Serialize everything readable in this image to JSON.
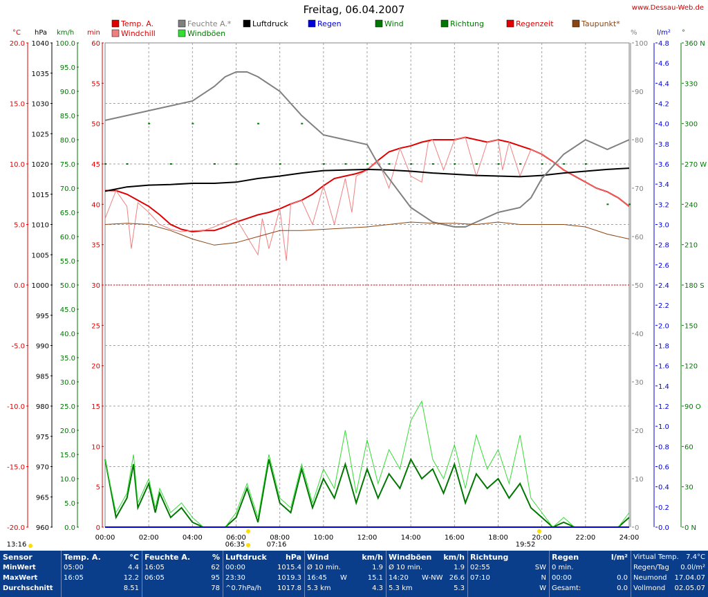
{
  "title": "Freitag, 06.04.2007",
  "site": "www.Dessau-Web.de",
  "axes": {
    "temp_unit": "°C",
    "hpa_unit": "hPa",
    "kmh_unit": "km/h",
    "min_unit": "min",
    "pct_unit": "%",
    "rain_unit": "l/m²",
    "dir_unit": "°",
    "temp_ticks": [
      "20.0",
      "15.0",
      "10.0",
      "5.0",
      "0.0",
      "-5.0",
      "-10.0",
      "-15.0",
      "-20.0"
    ],
    "hpa_ticks": [
      "1040",
      "1035",
      "1030",
      "1025",
      "1020",
      "1015",
      "1010",
      "1005",
      "1000",
      "995",
      "990",
      "985",
      "980",
      "975",
      "970",
      "965",
      "960"
    ],
    "kmh_ticks": [
      "100.0",
      "95.0",
      "90.0",
      "85.0",
      "80.0",
      "75.0",
      "70.0",
      "65.0",
      "60.0",
      "55.0",
      "50.0",
      "45.0",
      "40.0",
      "35.0",
      "30.0",
      "25.0",
      "20.0",
      "15.0",
      "10.0",
      "5.0",
      "0.0"
    ],
    "min_ticks": [
      "60",
      "55",
      "50",
      "45",
      "40",
      "35",
      "30",
      "25",
      "20",
      "15",
      "10",
      "5",
      "0"
    ],
    "pct_ticks": [
      "100",
      "90",
      "80",
      "70",
      "60",
      "50",
      "40",
      "30",
      "20",
      "10",
      "0"
    ],
    "rain_ticks": [
      "4.8",
      "4.6",
      "4.4",
      "4.2",
      "4.0",
      "3.8",
      "3.6",
      "3.4",
      "3.2",
      "3.0",
      "2.8",
      "2.6",
      "2.4",
      "2.2",
      "2.0",
      "1.8",
      "1.6",
      "1.4",
      "1.2",
      "1.0",
      "0.8",
      "0.6",
      "0.4",
      "0.2",
      "0.0"
    ],
    "dir_ticks": [
      "360 N",
      "330",
      "300",
      "270 W",
      "240",
      "210",
      "180 S",
      "150",
      "120",
      "90 O",
      "60",
      "30",
      "0 N"
    ],
    "time_ticks": [
      "00:00",
      "02:00",
      "04:00",
      "06:00",
      "08:00",
      "10:00",
      "12:00",
      "14:00",
      "16:00",
      "18:00",
      "20:00",
      "22:00",
      "24:00"
    ],
    "sun_labels": [
      "13:16",
      "06:35",
      "07:16",
      "19:52"
    ]
  },
  "legend": [
    {
      "label": "Temp. A.",
      "color": "#e00000"
    },
    {
      "label": "Windchill",
      "color": "#f08080"
    },
    {
      "label": "Feuchte A.*",
      "color": "#808080"
    },
    {
      "label": "Windböen",
      "color": "#33dd33"
    },
    {
      "label": "Luftdruck",
      "color": "#000000"
    },
    {
      "label": "Regen",
      "color": "#0000dd"
    },
    {
      "label": "Wind",
      "color": "#007700"
    },
    {
      "label": "Richtung",
      "color": "#007700"
    },
    {
      "label": "Regenzeit",
      "color": "#e00000"
    },
    {
      "label": "Taupunkt*",
      "color": "#8b4513"
    }
  ],
  "chart_data": {
    "type": "line",
    "title": "Freitag, 06.04.2007",
    "x_unit": "hours",
    "series": [
      {
        "name": "Temp. A.",
        "unit": "°C",
        "color": "#e00000",
        "x": [
          0,
          0.5,
          1,
          1.5,
          2,
          2.5,
          3,
          3.5,
          4,
          4.5,
          5,
          5.5,
          6,
          6.5,
          7,
          7.5,
          8,
          8.5,
          9,
          9.5,
          10,
          10.5,
          11,
          11.5,
          12,
          12.5,
          13,
          13.5,
          14,
          14.5,
          15,
          15.5,
          16,
          16.5,
          17,
          17.5,
          18,
          18.5,
          19,
          19.5,
          20,
          20.5,
          21,
          21.5,
          22,
          22.5,
          23,
          23.5,
          24
        ],
        "y": [
          7.8,
          7.8,
          7.5,
          7.0,
          6.5,
          5.8,
          5.0,
          4.6,
          4.4,
          4.5,
          4.5,
          4.8,
          5.2,
          5.5,
          5.8,
          6.0,
          6.3,
          6.7,
          7.0,
          7.5,
          8.2,
          8.8,
          9.0,
          9.2,
          9.5,
          10.3,
          11.0,
          11.3,
          11.5,
          11.8,
          12.0,
          12.0,
          12.0,
          12.2,
          12.0,
          11.8,
          12.0,
          11.8,
          11.5,
          11.2,
          10.8,
          10.2,
          9.5,
          9.0,
          8.5,
          8.0,
          7.7,
          7.2,
          6.5
        ]
      },
      {
        "name": "Windchill",
        "unit": "°C",
        "color": "#f08080",
        "x": [
          0,
          0.5,
          1,
          1.2,
          1.5,
          2,
          2.5,
          3,
          3.5,
          4,
          4.5,
          5,
          5.5,
          6,
          6.5,
          7,
          7.2,
          7.5,
          8,
          8.3,
          8.5,
          9,
          9.5,
          10,
          10.5,
          11,
          11.3,
          11.5,
          12,
          12.5,
          13,
          13.5,
          14,
          14.5,
          14.8,
          15,
          15.5,
          16,
          16.5,
          17,
          17.5,
          18,
          18.2,
          18.5,
          19,
          19.5,
          20,
          20.5,
          21,
          21.5,
          22,
          22.5,
          23,
          23.5,
          24
        ],
        "y": [
          5.5,
          7.8,
          6.5,
          3.0,
          6.8,
          6.0,
          5.0,
          4.6,
          4.4,
          4.5,
          4.5,
          4.8,
          5.2,
          5.5,
          4.0,
          2.5,
          5.5,
          3.0,
          6.3,
          2.0,
          6.7,
          7.0,
          5.0,
          8.2,
          5.0,
          8.8,
          6.0,
          9.0,
          9.5,
          10.3,
          8.0,
          11.3,
          9.0,
          8.5,
          11.8,
          12.0,
          9.5,
          12.0,
          12.2,
          9.0,
          11.8,
          12.0,
          9.5,
          11.8,
          9.0,
          11.2,
          10.8,
          10.2,
          9.5,
          9.0,
          8.5,
          8.0,
          7.7,
          7.2,
          6.5
        ]
      },
      {
        "name": "Luftdruck",
        "unit": "hPa",
        "color": "#000000",
        "x": [
          0,
          1,
          2,
          3,
          4,
          5,
          6,
          7,
          8,
          9,
          10,
          11,
          12,
          13,
          14,
          15,
          16,
          17,
          18,
          19,
          20,
          21,
          22,
          23,
          24
        ],
        "y": [
          1015.5,
          1016.2,
          1016.5,
          1016.6,
          1016.8,
          1016.8,
          1017.0,
          1017.6,
          1018.0,
          1018.5,
          1018.9,
          1019.0,
          1019.1,
          1019.0,
          1018.8,
          1018.5,
          1018.3,
          1018.1,
          1018.0,
          1017.9,
          1018.1,
          1018.5,
          1018.8,
          1019.1,
          1019.3
        ]
      },
      {
        "name": "Feuchte A.*",
        "unit": "%",
        "color": "#808080",
        "x": [
          0,
          1,
          2,
          3,
          4,
          5,
          5.5,
          6,
          6.5,
          7,
          8,
          9,
          10,
          11,
          12,
          12.5,
          13,
          14,
          15,
          16,
          16.5,
          17,
          18,
          19,
          19.5,
          20,
          21,
          22,
          23,
          24
        ],
        "y": [
          84,
          85,
          86,
          87,
          88,
          91,
          93,
          94,
          94,
          93,
          90,
          85,
          81,
          80,
          79,
          75,
          72,
          66,
          63,
          62,
          62,
          63,
          65,
          66,
          68,
          72,
          77,
          80,
          78,
          80
        ]
      },
      {
        "name": "Taupunkt*",
        "unit": "°C",
        "color": "#8b4513",
        "x": [
          0,
          1,
          2,
          3,
          4,
          5,
          6,
          7,
          8,
          9,
          10,
          11,
          12,
          13,
          14,
          15,
          16,
          17,
          18,
          19,
          20,
          21,
          22,
          23,
          24
        ],
        "y": [
          5.0,
          5.1,
          5.0,
          4.5,
          3.8,
          3.3,
          3.5,
          4.0,
          4.5,
          4.5,
          4.6,
          4.7,
          4.8,
          5.0,
          5.2,
          5.1,
          5.1,
          5.0,
          5.2,
          5.0,
          5.0,
          5.0,
          4.8,
          4.2,
          3.8
        ]
      },
      {
        "name": "Wind",
        "unit": "km/h",
        "color": "#007700",
        "x": [
          0,
          0.5,
          1,
          1.3,
          1.5,
          2,
          2.3,
          2.5,
          3,
          3.5,
          4,
          4.5,
          5,
          5.5,
          6,
          6.5,
          7,
          7.5,
          8,
          8.5,
          9,
          9.5,
          10,
          10.5,
          11,
          11.5,
          12,
          12.5,
          13,
          13.5,
          14,
          14.5,
          15,
          15.5,
          16,
          16.5,
          17,
          17.5,
          18,
          18.5,
          19,
          19.5,
          20,
          20.5,
          21,
          21.5,
          22,
          22.5,
          23,
          23.5,
          24
        ],
        "y": [
          14,
          2,
          6,
          13,
          4,
          9,
          3,
          7,
          2,
          4,
          1,
          0,
          0,
          0,
          2,
          8,
          1,
          14,
          5,
          3,
          12,
          4,
          10,
          6,
          13,
          5,
          12,
          6,
          11,
          8,
          14,
          10,
          12,
          7,
          13,
          5,
          11,
          8,
          10,
          6,
          9,
          4,
          2,
          0,
          1,
          0,
          0,
          0,
          0,
          0,
          2
        ]
      },
      {
        "name": "Windböen",
        "unit": "km/h",
        "color": "#33dd33",
        "x": [
          0,
          0.5,
          1,
          1.3,
          1.5,
          2,
          2.3,
          2.5,
          3,
          3.5,
          4,
          4.5,
          5,
          5.5,
          6,
          6.5,
          7,
          7.5,
          8,
          8.5,
          9,
          9.5,
          10,
          10.5,
          11,
          11.5,
          12,
          12.5,
          13,
          13.5,
          14,
          14.5,
          15,
          15.5,
          16,
          16.5,
          17,
          17.5,
          18,
          18.5,
          19,
          19.5,
          20,
          20.5,
          21,
          21.5,
          22,
          22.5,
          23,
          23.5,
          24
        ],
        "y": [
          14,
          3,
          7,
          15,
          5,
          10,
          4,
          8,
          3,
          5,
          2,
          0,
          0,
          0,
          3,
          9,
          2,
          15,
          6,
          4,
          13,
          5,
          12,
          8,
          20,
          7,
          18,
          9,
          16,
          12,
          22,
          26,
          14,
          10,
          17,
          8,
          19,
          12,
          16,
          9,
          19,
          6,
          3,
          0,
          2,
          0,
          0,
          0,
          0,
          0,
          3
        ]
      },
      {
        "name": "Regen",
        "unit": "l/m²",
        "color": "#0000dd",
        "x": [
          0,
          24
        ],
        "y": [
          0,
          0
        ]
      },
      {
        "name": "Richtung",
        "unit": "°",
        "color": "#007700",
        "x": [
          0,
          1,
          2,
          3,
          4,
          5,
          6,
          7,
          8,
          9,
          10,
          11,
          12,
          13,
          14,
          15,
          16,
          17,
          18,
          19,
          20,
          21,
          22,
          23,
          24
        ],
        "y": [
          270,
          270,
          300,
          270,
          300,
          270,
          270,
          300,
          270,
          300,
          270,
          270,
          270,
          270,
          270,
          270,
          270,
          270,
          270,
          270,
          270,
          270,
          270,
          240,
          240
        ]
      }
    ],
    "axes_ranges": {
      "temp": [
        -20,
        20
      ],
      "hpa": [
        960,
        1040
      ],
      "kmh": [
        0,
        100
      ],
      "min": [
        0,
        60
      ],
      "pct": [
        0,
        100
      ],
      "rain": [
        0,
        5
      ],
      "dir": [
        0,
        360
      ],
      "time": [
        0,
        24
      ]
    },
    "grid": true
  },
  "stats": [
    {
      "head": "Sensor",
      "unit": "",
      "rows": [
        [
          "MinWert",
          "",
          ""
        ],
        [
          "MaxWert",
          "",
          ""
        ],
        [
          "Durchschnitt",
          "",
          ""
        ]
      ]
    },
    {
      "head": "Temp. A.",
      "unit": "°C",
      "rows": [
        [
          "05:00",
          "",
          "4.4"
        ],
        [
          "16:05",
          "",
          "12.2"
        ],
        [
          "",
          "",
          "8.51"
        ]
      ]
    },
    {
      "head": "Feuchte A.",
      "unit": "%",
      "rows": [
        [
          "16:05",
          "",
          "62"
        ],
        [
          "06:05",
          "",
          "95"
        ],
        [
          "",
          "",
          "78"
        ]
      ]
    },
    {
      "head": "Luftdruck",
      "unit": "hPa",
      "rows": [
        [
          "00:00",
          "",
          "1015.4"
        ],
        [
          "23:30",
          "",
          "1019.3"
        ],
        [
          "^0.7hPa/h",
          "",
          "1017.8"
        ]
      ]
    },
    {
      "head": "Wind",
      "unit": "km/h",
      "rows": [
        [
          "Ø 10 min.",
          "",
          "1.9"
        ],
        [
          "16:45",
          "W",
          "15.1"
        ],
        [
          "5.3 km",
          "",
          "4.3"
        ]
      ]
    },
    {
      "head": "Windböen",
      "unit": "km/h",
      "rows": [
        [
          "Ø 10 min.",
          "",
          "1.9"
        ],
        [
          "14:20",
          "W-NW",
          "26.6"
        ],
        [
          "5.3 km",
          "",
          "5.3"
        ]
      ]
    },
    {
      "head": "Richtung",
      "unit": "",
      "rows": [
        [
          "02:55",
          "",
          "SW"
        ],
        [
          "07:10",
          "",
          "N"
        ],
        [
          "",
          "",
          "W"
        ]
      ]
    },
    {
      "head": "Regen",
      "unit": "l/m²",
      "rows": [
        [
          "0 min.",
          "",
          ""
        ],
        [
          "00:00",
          "",
          "0.0"
        ],
        [
          "Gesamt:",
          "",
          "0.0"
        ]
      ]
    },
    {
      "head": "",
      "unit": "",
      "rows": [
        [
          "Virtual Temp.",
          "",
          "7.4°C"
        ],
        [
          "Regen/Tag",
          "",
          "0.0l/m²"
        ],
        [
          "Neumond",
          "",
          "17.04.07"
        ],
        [
          "Vollmond",
          "",
          "02.05.07"
        ]
      ]
    }
  ]
}
